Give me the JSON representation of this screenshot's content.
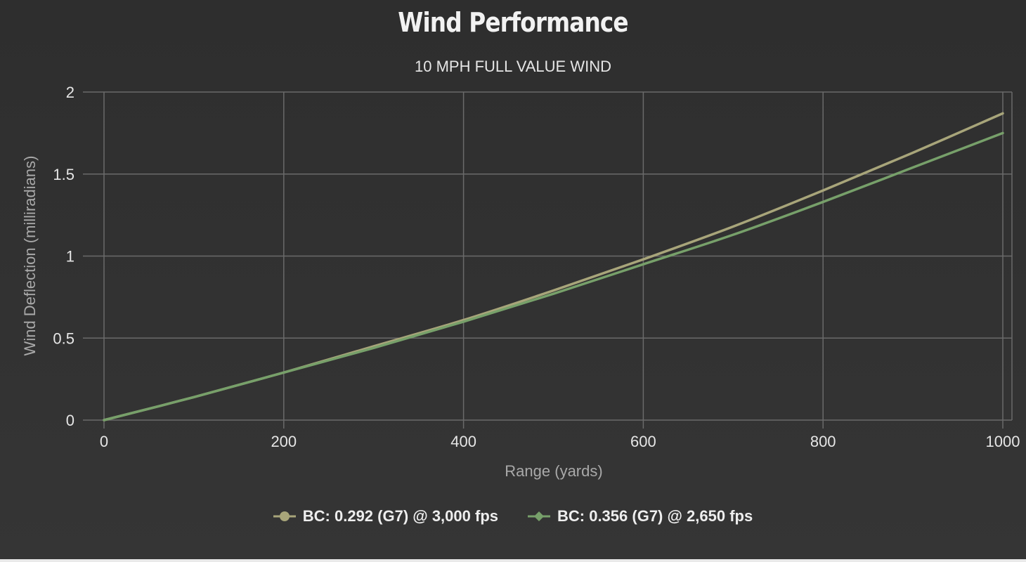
{
  "chart_data": {
    "type": "line",
    "title": "Wind Performance",
    "subtitle": "10 MPH FULL VALUE WIND",
    "xlabel": "Range (yards)",
    "ylabel": "Wind Deflection (milliradians)",
    "xlim": [
      0,
      1000
    ],
    "ylim": [
      0,
      2
    ],
    "x_ticks": [
      0,
      200,
      400,
      600,
      800,
      1000
    ],
    "y_ticks": [
      0,
      0.5,
      1,
      1.5,
      2
    ],
    "y_tick_labels": [
      "0",
      "0.5",
      "1",
      "1.5",
      "2"
    ],
    "grid": true,
    "legend_position": "bottom",
    "x": [
      0,
      100,
      200,
      300,
      400,
      500,
      600,
      700,
      800,
      900,
      1000
    ],
    "series": [
      {
        "name": "BC: 0.292 (G7) @ 3,000 fps",
        "marker": "circle",
        "color": "#a8a57a",
        "values": [
          0,
          0.14,
          0.29,
          0.45,
          0.61,
          0.79,
          0.98,
          1.18,
          1.4,
          1.63,
          1.87
        ]
      },
      {
        "name": "BC: 0.356 (G7) @ 2,650 fps",
        "marker": "diamond",
        "color": "#77a06a",
        "values": [
          0,
          0.14,
          0.29,
          0.44,
          0.6,
          0.77,
          0.95,
          1.13,
          1.33,
          1.54,
          1.75
        ]
      }
    ]
  }
}
